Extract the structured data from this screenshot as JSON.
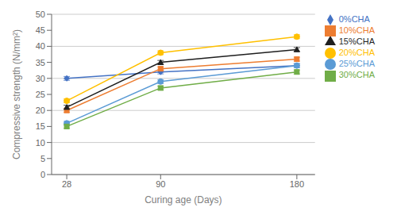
{
  "chart_data": {
    "type": "line",
    "x": [
      28,
      90,
      180
    ],
    "xlabel": "Curing age (Days)",
    "ylabel": "Compressive strength (N/mm²)",
    "xlim": [
      18,
      192
    ],
    "xticks": [
      28,
      90,
      180
    ],
    "ylim": [
      0,
      50
    ],
    "yticks": [
      0,
      5,
      10,
      15,
      20,
      25,
      30,
      35,
      40,
      45,
      50
    ],
    "grid": "y",
    "legend": "right",
    "series": [
      {
        "name": "0%CHA",
        "color": "#4472C4",
        "marker": "diamond",
        "values": [
          30,
          32,
          34
        ],
        "errors": [
          0.6,
          0.6,
          0.6
        ]
      },
      {
        "name": "10%CHA",
        "color": "#ED7D31",
        "marker": "square",
        "values": [
          20,
          33,
          36
        ],
        "errors": [
          0.6,
          0.6,
          0.6
        ]
      },
      {
        "name": "15%CHA",
        "color": "#1F1F1F",
        "marker": "triangle",
        "values": [
          21,
          35,
          39
        ],
        "errors": [
          0.6,
          0.6,
          0.6
        ]
      },
      {
        "name": "20%CHA",
        "color": "#FFC000",
        "marker": "circle",
        "values": [
          23,
          38,
          43
        ],
        "errors": [
          0.6,
          0.6,
          0.6
        ]
      },
      {
        "name": "25%CHA",
        "color": "#5B9BD5",
        "marker": "circle",
        "values": [
          16,
          29,
          34
        ],
        "errors": [
          0.6,
          0.6,
          0.6
        ]
      },
      {
        "name": "30%CHA",
        "color": "#70AD47",
        "marker": "square",
        "values": [
          15,
          27,
          32
        ],
        "errors": [
          0.6,
          0.6,
          0.6
        ]
      }
    ]
  }
}
